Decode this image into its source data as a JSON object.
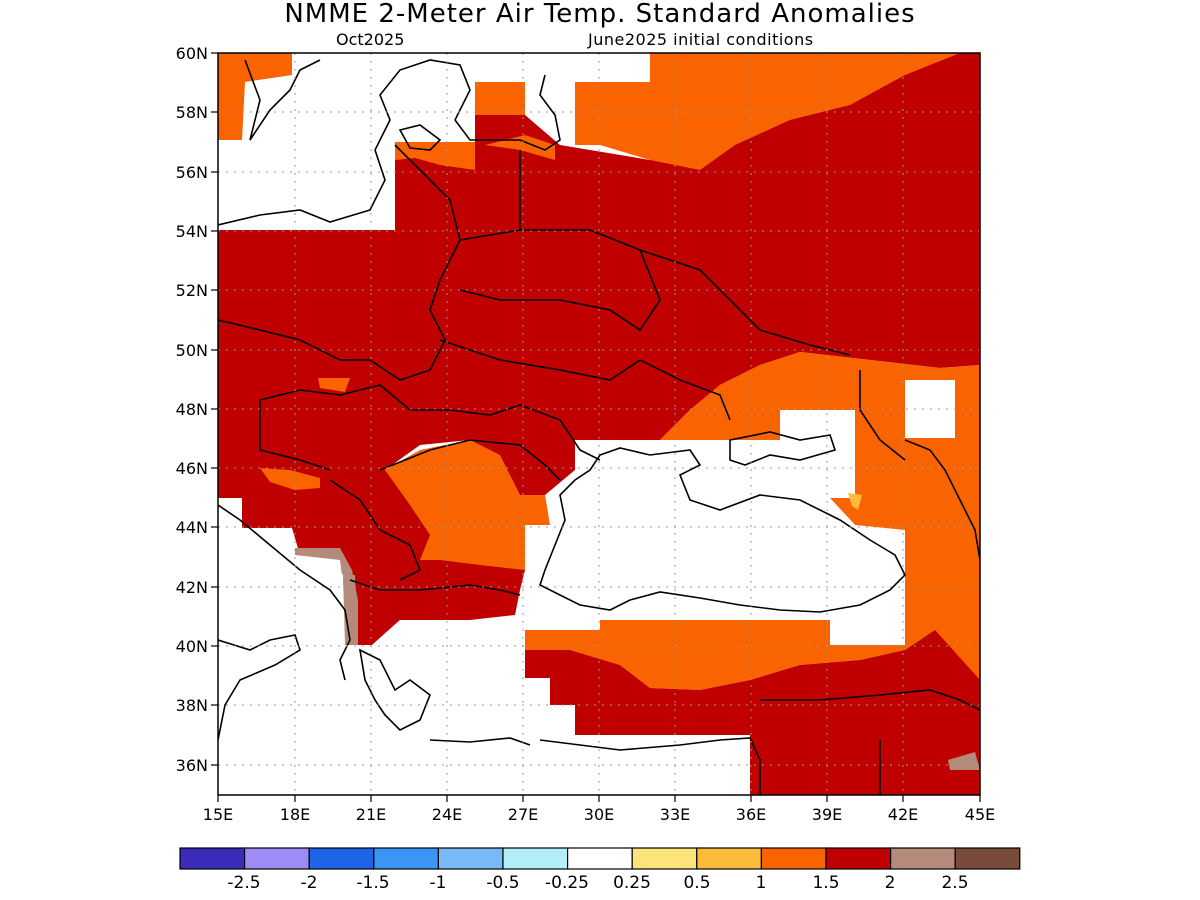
{
  "header": {
    "title": "NMME 2-Meter Air Temp. Standard Anomalies",
    "target_month": "Oct2025",
    "initial_conditions": "June2025 initial conditions"
  },
  "map": {
    "lat_labels": [
      "60N",
      "58N",
      "56N",
      "54N",
      "52N",
      "50N",
      "48N",
      "46N",
      "44N",
      "42N",
      "40N",
      "38N",
      "36N"
    ],
    "lon_labels": [
      "15E",
      "18E",
      "21E",
      "24E",
      "27E",
      "30E",
      "33E",
      "36E",
      "39E",
      "42E",
      "45E"
    ],
    "extent": {
      "lon": [
        15,
        45
      ],
      "lat": [
        35,
        60
      ]
    }
  },
  "colorbar": {
    "colors": [
      "#3a2bb8",
      "#9d8cf5",
      "#1e64e6",
      "#3c95f5",
      "#78b9f7",
      "#b3eefa",
      "#ffffff",
      "#fde47a",
      "#fcbc3a",
      "#fa6400",
      "#c00000",
      "#b48a7a",
      "#7a4a3a"
    ],
    "labels": [
      "-2.5",
      "-2",
      "-1.5",
      "-1",
      "-0.5",
      "-0.25",
      "0.25",
      "0.5",
      "1",
      "1.5",
      "2",
      "2.5"
    ]
  },
  "legend_colors": {
    "dark_red": "#c00000",
    "orange": "#fa6400",
    "light_orange": "#fcbc3a",
    "brown": "#b48a7a"
  }
}
